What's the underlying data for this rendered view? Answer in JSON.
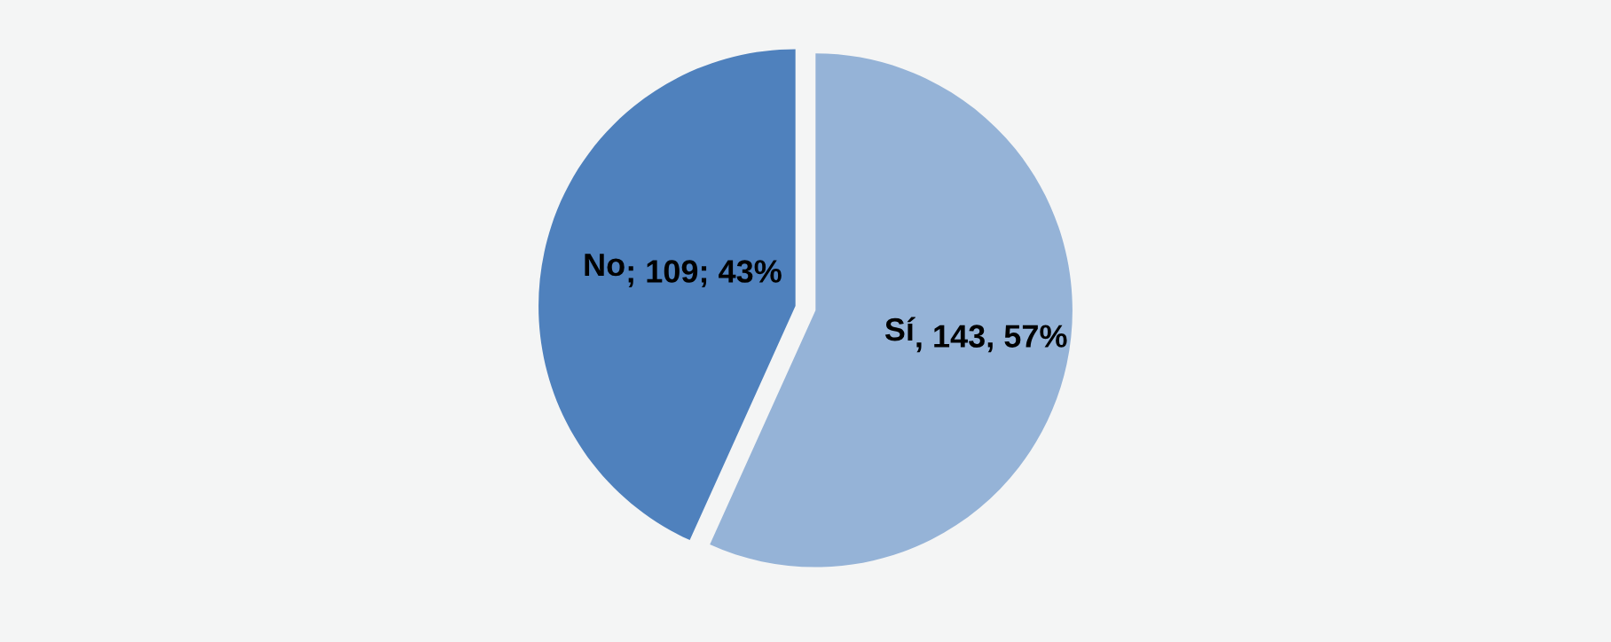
{
  "chart_data": {
    "type": "pie",
    "categories": [
      "Sí",
      "No"
    ],
    "values": [
      143,
      109
    ],
    "colors": [
      "#95b3d7",
      "#4f81bd"
    ],
    "value_labels": [
      ", 143, 57%",
      "; 109; 43%"
    ],
    "legend": false
  }
}
